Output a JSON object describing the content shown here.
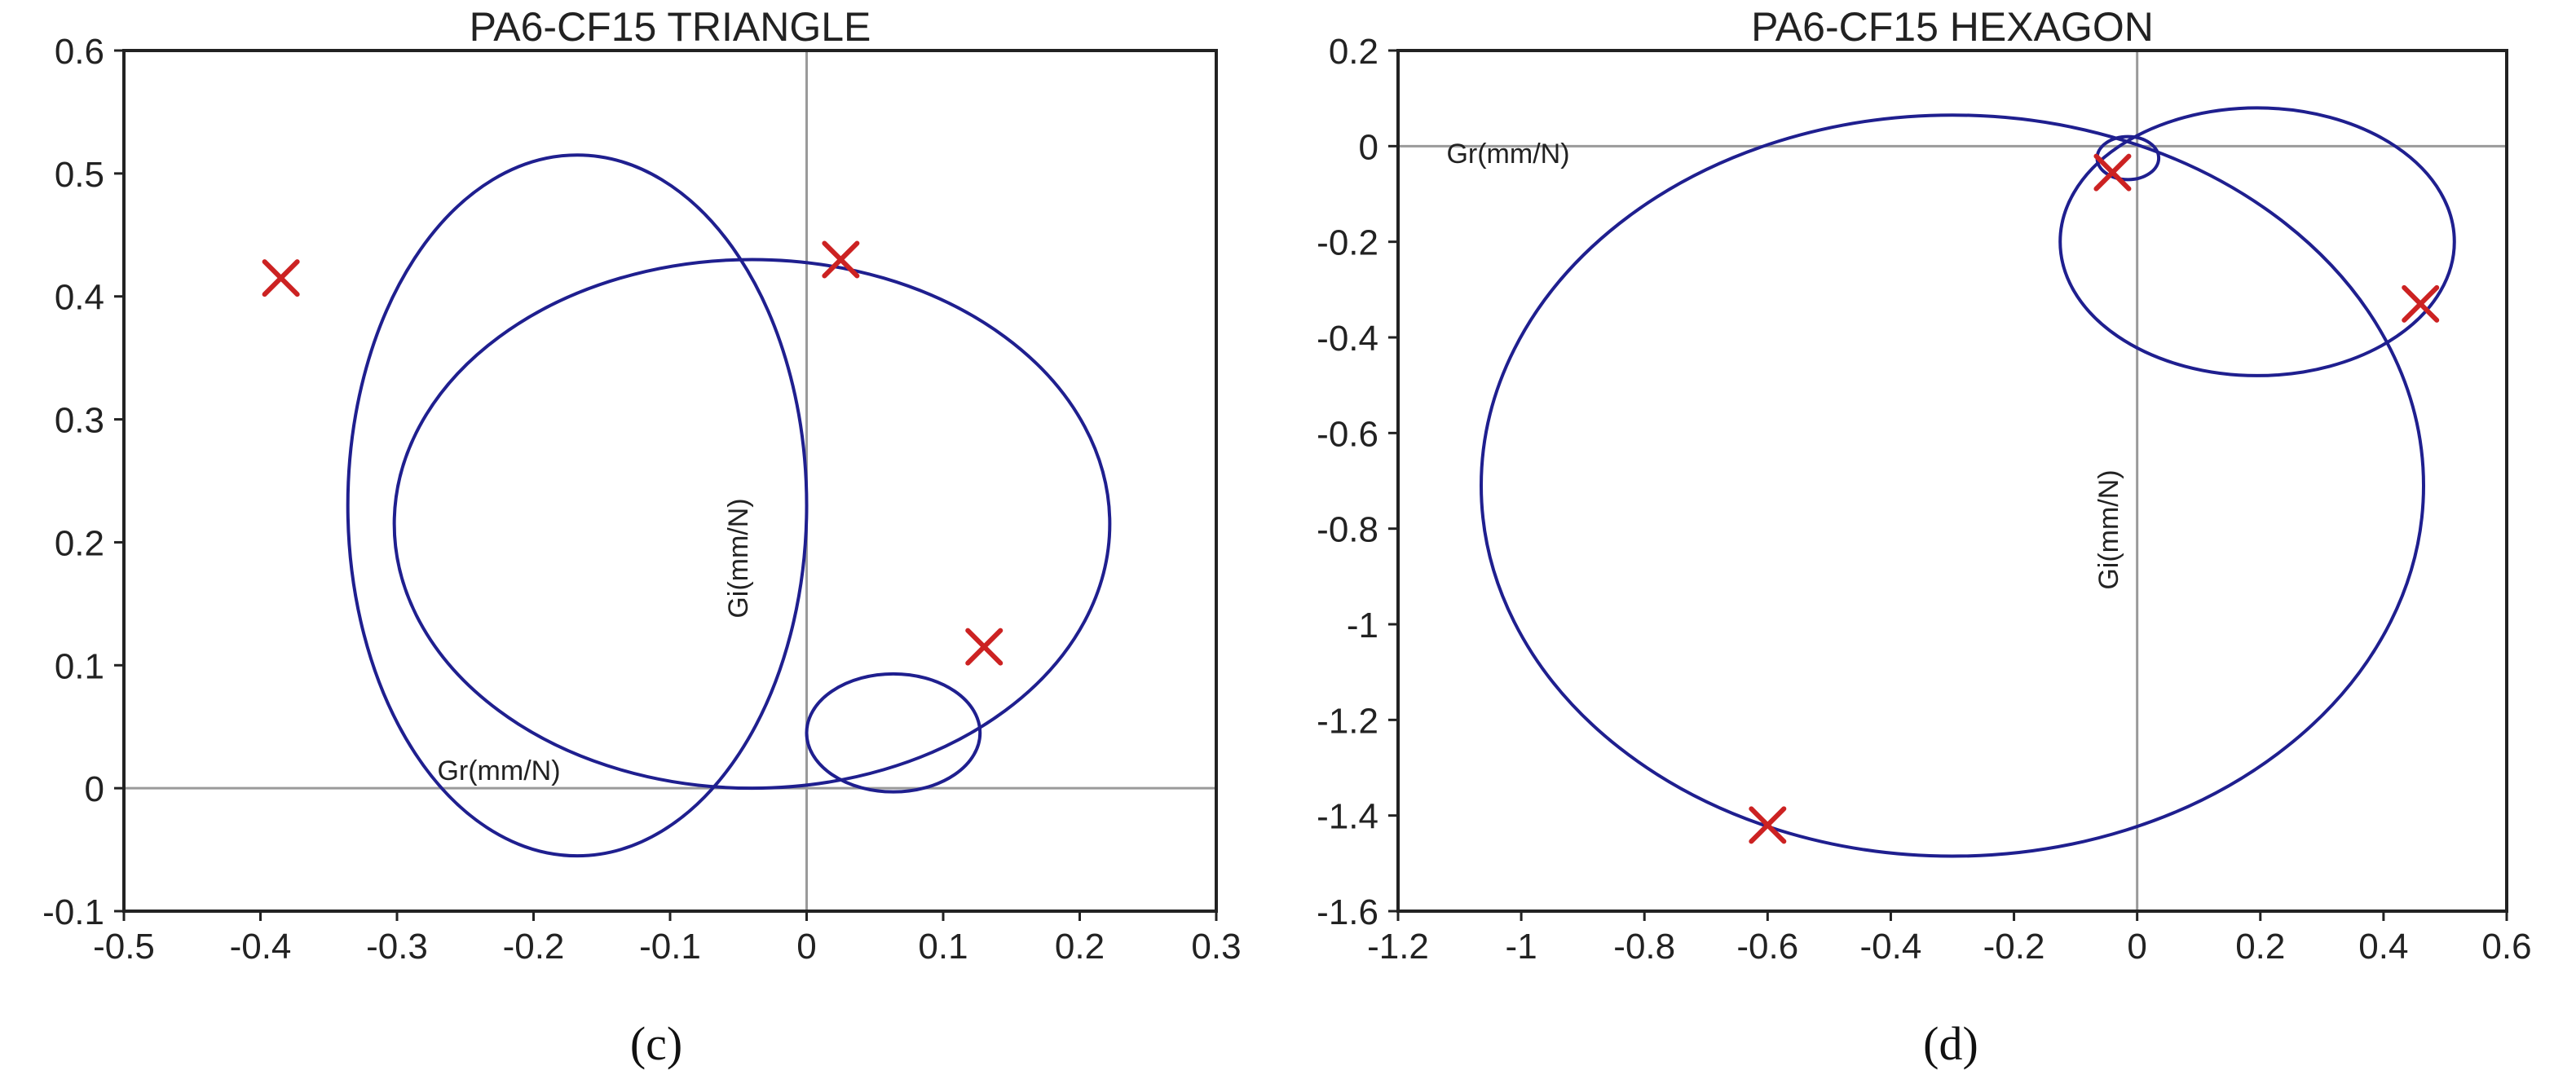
{
  "chart_data": [
    {
      "type": "line",
      "title": "PA6-CF15 TRIANGLE",
      "panel_label": "(c)",
      "xlabel": "Gr(mm/N)",
      "ylabel": "Gi(mm/N)",
      "xlim": [
        -0.5,
        0.3
      ],
      "ylim": [
        -0.1,
        0.6
      ],
      "xticks": [
        "-0.5",
        "-0.4",
        "-0.3",
        "-0.2",
        "-0.1",
        "0",
        "0.1",
        "0.2",
        "0.3"
      ],
      "yticks": [
        "-0.1",
        "0",
        "0.1",
        "0.2",
        "0.3",
        "0.4",
        "0.5",
        "0.6"
      ],
      "grid": false,
      "colors": {
        "curve": "#1f1f8f",
        "marker": "#cc2222"
      },
      "series": [
        {
          "shape": "ellipse",
          "center": [
            -0.168,
            0.23
          ],
          "radii": [
            0.168,
            0.285
          ]
        },
        {
          "shape": "ellipse",
          "center": [
            -0.04,
            0.215
          ],
          "radii": [
            0.262,
            0.215
          ]
        },
        {
          "shape": "ellipse",
          "center": [
            0.0635,
            0.045
          ],
          "radii": [
            0.0635,
            0.048
          ]
        }
      ],
      "markers": [
        {
          "x": -0.385,
          "y": 0.415
        },
        {
          "x": 0.025,
          "y": 0.43
        },
        {
          "x": 0.13,
          "y": 0.115
        }
      ]
    },
    {
      "type": "line",
      "title": "PA6-CF15 HEXAGON",
      "panel_label": "(d)",
      "xlabel": "Gr(mm/N)",
      "ylabel": "Gi(mm/N)",
      "xlim": [
        -1.2,
        0.6
      ],
      "ylim": [
        -1.6,
        0.2
      ],
      "xticks": [
        "-1.2",
        "-1",
        "-0.8",
        "-0.6",
        "-0.4",
        "-0.2",
        "0",
        "0.2",
        "0.4",
        "0.6"
      ],
      "yticks": [
        "0.2",
        "0",
        "-0.2",
        "-0.4",
        "-0.6",
        "-0.8",
        "-1",
        "-1.2",
        "-1.4",
        "-1.6"
      ],
      "grid": false,
      "colors": {
        "curve": "#1f1f8f",
        "marker": "#cc2222"
      },
      "series": [
        {
          "shape": "ellipse",
          "center": [
            -0.3,
            -0.71
          ],
          "radii": [
            0.765,
            0.775
          ]
        },
        {
          "shape": "ellipse",
          "center": [
            0.195,
            -0.2
          ],
          "radii": [
            0.32,
            0.28
          ]
        },
        {
          "shape": "ellipse",
          "center": [
            -0.015,
            -0.025
          ],
          "radii": [
            0.05,
            0.045
          ]
        }
      ],
      "markers": [
        {
          "x": -0.6,
          "y": -1.42
        },
        {
          "x": -0.04,
          "y": -0.055
        },
        {
          "x": 0.46,
          "y": -0.33
        }
      ]
    }
  ]
}
